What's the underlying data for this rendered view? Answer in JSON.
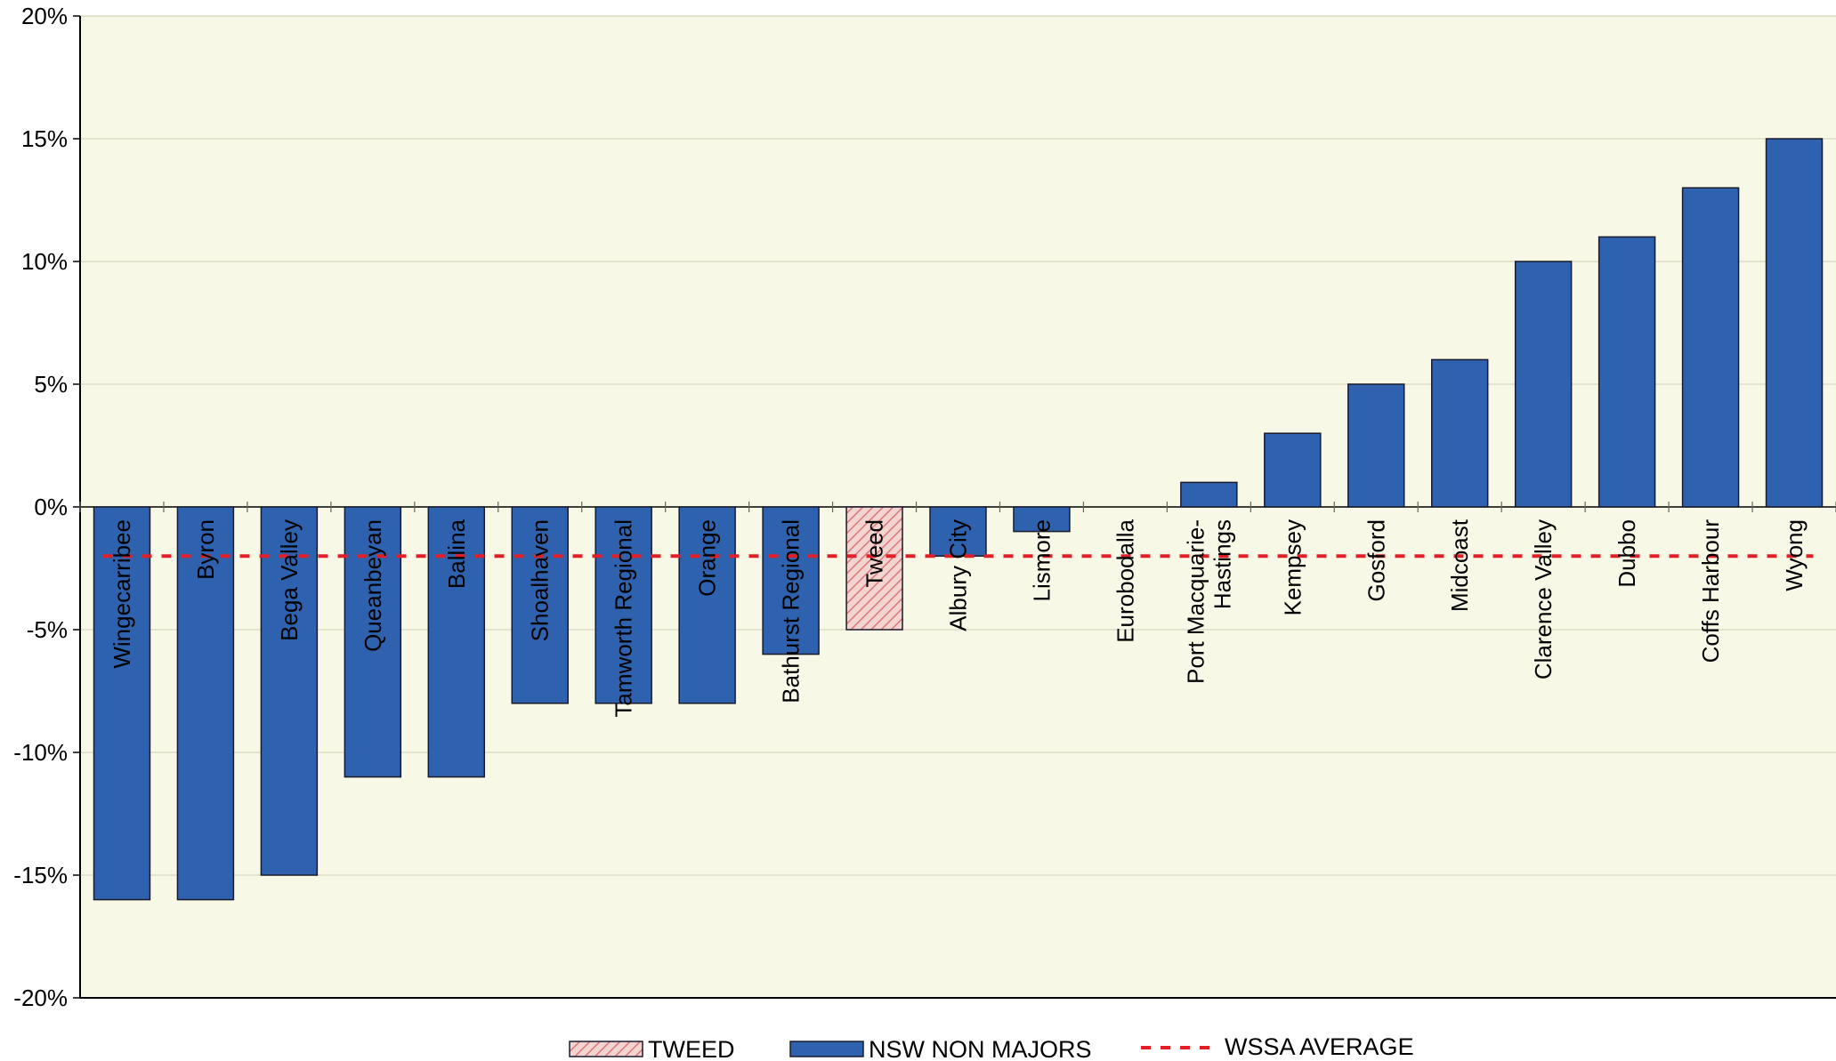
{
  "chart_data": {
    "type": "bar",
    "ylim": [
      -20,
      20
    ],
    "y_ticks": [
      "20%",
      "15%",
      "10%",
      "5%",
      "0%",
      "-5%",
      "-10%",
      "-15%",
      "-20%"
    ],
    "y_tick_values": [
      20,
      15,
      10,
      5,
      0,
      -5,
      -10,
      -15,
      -20
    ],
    "grid": true,
    "legend_position": "bottom",
    "categories": [
      "Wingecarribee",
      "Byron",
      "Bega Valley",
      "Queanbeyan",
      "Ballina",
      "Shoalhaven",
      "Tamworth Regional",
      "Orange",
      "Bathurst Regional",
      "Tweed",
      "Albury City",
      "Lismore",
      "Eurobodalla",
      "Port Macquarie-Hastings",
      "Kempsey",
      "Gosford",
      "Midcoast",
      "Clarence Valley",
      "Dubbo",
      "Coffs Harbour",
      "Wyong"
    ],
    "category_lines": [
      [
        "Wingecarribee"
      ],
      [
        "Byron"
      ],
      [
        "Bega Valley"
      ],
      [
        "Queanbeyan"
      ],
      [
        "Ballina"
      ],
      [
        "Shoalhaven"
      ],
      [
        "Tamworth Regional"
      ],
      [
        "Orange"
      ],
      [
        "Bathurst Regional"
      ],
      [
        "Tweed"
      ],
      [
        "Albury City"
      ],
      [
        "Lismore"
      ],
      [
        "Eurobodalla"
      ],
      [
        "Port Macquarie-",
        "Hastings"
      ],
      [
        "Kempsey"
      ],
      [
        "Gosford"
      ],
      [
        "Midcoast"
      ],
      [
        "Clarence Valley"
      ],
      [
        "Dubbo"
      ],
      [
        "Coffs Harbour"
      ],
      [
        "Wyong"
      ]
    ],
    "values": [
      -16,
      -16,
      -15,
      -11,
      -11,
      -8,
      -8,
      -8,
      -6,
      -5,
      -2,
      -1,
      0,
      1,
      3,
      5,
      6,
      10,
      11,
      13,
      15
    ],
    "series_membership": [
      "NSW NON MAJORS",
      "NSW NON MAJORS",
      "NSW NON MAJORS",
      "NSW NON MAJORS",
      "NSW NON MAJORS",
      "NSW NON MAJORS",
      "NSW NON MAJORS",
      "NSW NON MAJORS",
      "NSW NON MAJORS",
      "TWEED",
      "NSW NON MAJORS",
      "NSW NON MAJORS",
      "NSW NON MAJORS",
      "NSW NON MAJORS",
      "NSW NON MAJORS",
      "NSW NON MAJORS",
      "NSW NON MAJORS",
      "NSW NON MAJORS",
      "NSW NON MAJORS",
      "NSW NON MAJORS",
      "NSW NON MAJORS"
    ],
    "average": {
      "name": "WSSA AVERAGE",
      "value": -2
    },
    "legend": [
      {
        "name": "TWEED",
        "style": "hatched"
      },
      {
        "name": "NSW NON MAJORS",
        "style": "solid"
      },
      {
        "name": "WSSA AVERAGE",
        "style": "dashed"
      }
    ]
  },
  "colors": {
    "plot_background": "#f8f8e6",
    "bar_fill": "#2e61ae",
    "bar_stroke": "#1a1a2a",
    "tweed_fill": "#f4d4d0",
    "tweed_hatch": "#d87878",
    "average_line": "#e21f26",
    "gridline": "#dcdcc6"
  }
}
